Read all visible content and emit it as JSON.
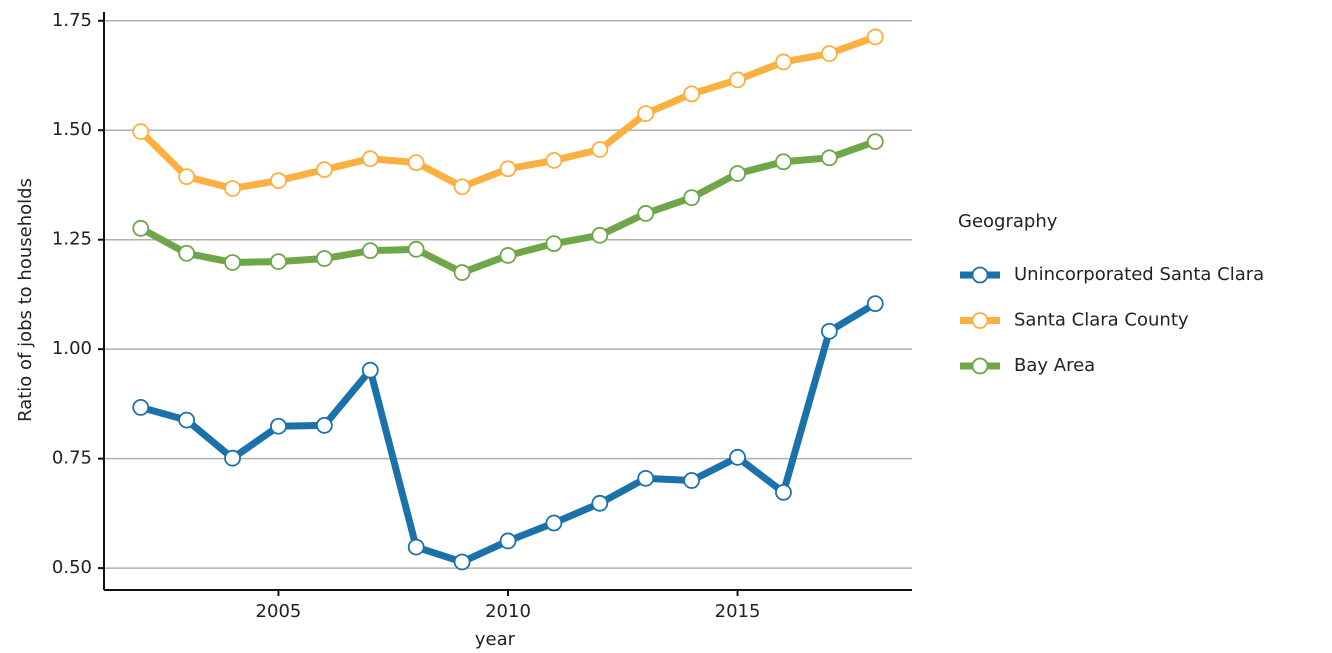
{
  "chart_data": {
    "type": "line",
    "x_label": "year",
    "y_label": "Ratio of jobs to households",
    "legend_title": "Geography",
    "x": [
      2002,
      2003,
      2004,
      2005,
      2006,
      2007,
      2008,
      2009,
      2010,
      2011,
      2012,
      2013,
      2014,
      2015,
      2016,
      2017,
      2018
    ],
    "series": [
      {
        "name": "Unincorporated Santa Clara",
        "color": "#1b72aa",
        "values": [
          0.867,
          0.838,
          0.751,
          0.824,
          0.826,
          0.952,
          0.548,
          0.514,
          0.562,
          0.603,
          0.648,
          0.705,
          0.7,
          0.753,
          0.673,
          1.041,
          1.104
        ]
      },
      {
        "name": "Santa Clara County",
        "color": "#fbb040",
        "values": [
          1.497,
          1.394,
          1.367,
          1.385,
          1.41,
          1.435,
          1.426,
          1.371,
          1.412,
          1.431,
          1.456,
          1.538,
          1.583,
          1.615,
          1.656,
          1.675,
          1.713
        ]
      },
      {
        "name": "Bay Area",
        "color": "#6fa64a",
        "values": [
          1.276,
          1.219,
          1.198,
          1.2,
          1.207,
          1.225,
          1.228,
          1.175,
          1.214,
          1.241,
          1.26,
          1.31,
          1.346,
          1.401,
          1.428,
          1.437,
          1.474
        ]
      }
    ],
    "xlim": [
      2001.2,
      2018.8
    ],
    "xticks": [
      2005,
      2010,
      2015
    ],
    "ylim": [
      0.45,
      1.77
    ],
    "yticks": [
      {
        "value": 0.5,
        "label": "0.50"
      },
      {
        "value": 0.75,
        "label": "0.75"
      },
      {
        "value": 1.0,
        "label": "1.00"
      },
      {
        "value": 1.25,
        "label": "1.25"
      },
      {
        "value": 1.5,
        "label": "1.50"
      },
      {
        "value": 1.75,
        "label": "1.75"
      }
    ],
    "grid": true,
    "legend": "right"
  }
}
